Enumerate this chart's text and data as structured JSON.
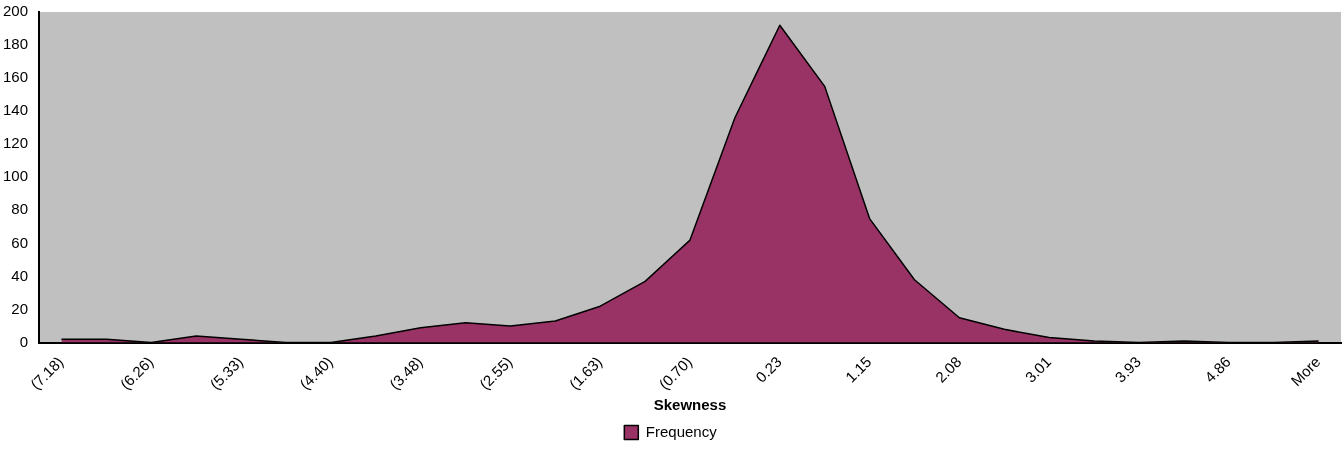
{
  "chart_data": {
    "type": "area",
    "xlabel": "Skewness",
    "categories": [
      "(7.18)",
      null,
      "(6.26)",
      null,
      "(5.33)",
      null,
      "(4.40)",
      null,
      "(3.48)",
      null,
      "(2.55)",
      null,
      "(1.63)",
      null,
      "(0.70)",
      null,
      "0.23",
      null,
      "1.15",
      null,
      "2.08",
      null,
      "3.01",
      null,
      "3.93",
      null,
      "4.86",
      null,
      "More"
    ],
    "series": [
      {
        "name": "Frequency",
        "color": "#993366",
        "values": [
          2,
          2,
          0,
          4,
          2,
          0,
          0,
          4,
          9,
          12,
          10,
          13,
          22,
          37,
          62,
          136,
          192,
          155,
          75,
          38,
          15,
          8,
          3,
          1,
          0,
          1,
          0,
          0,
          1
        ]
      }
    ],
    "ylim": [
      0,
      200
    ],
    "yticks": [
      0,
      20,
      40,
      60,
      80,
      100,
      120,
      140,
      160,
      180,
      200
    ],
    "grid": false,
    "legend": "bottom"
  }
}
